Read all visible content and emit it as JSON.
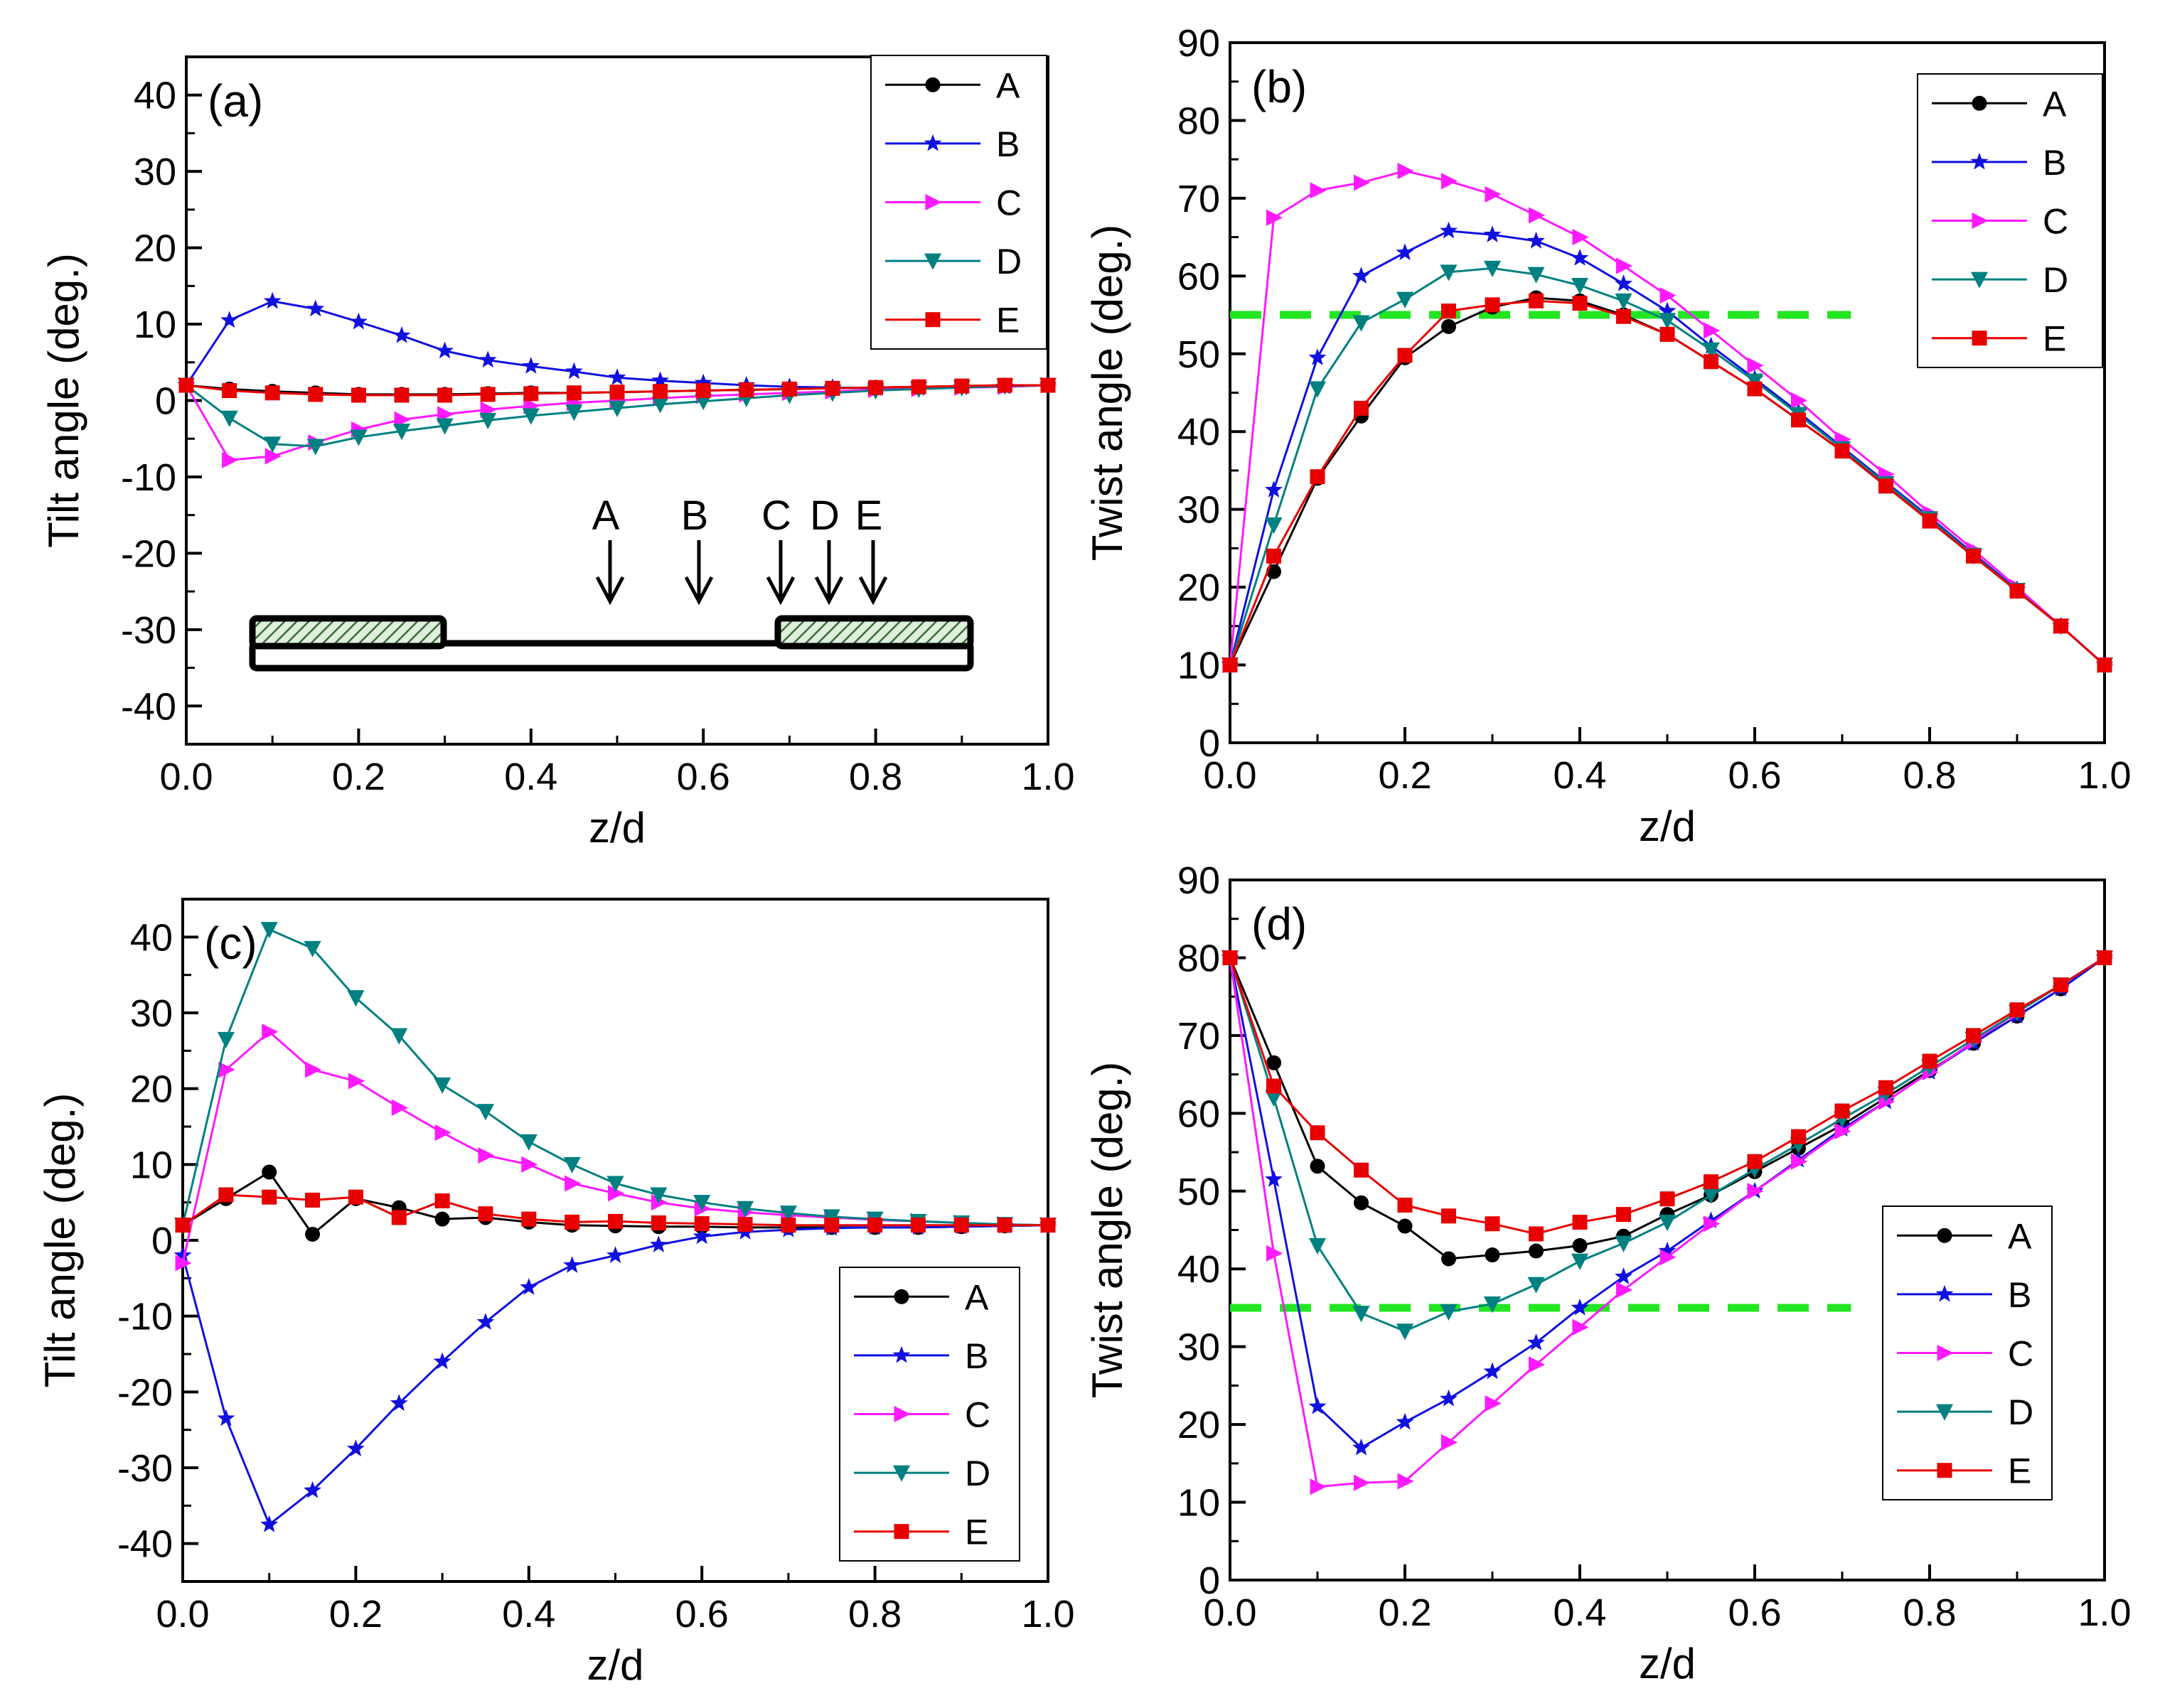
{
  "colors": {
    "A": "#000000",
    "B": "#1010e0",
    "C": "#ff1aff",
    "D": "#008080",
    "E": "#e80000",
    "reference": "#22e622"
  },
  "chart_data": [
    {
      "id": "a",
      "type": "line",
      "panel_label": "(a)",
      "xlabel": "z/d",
      "ylabel": "Tilt angle (deg.)",
      "xlim": [
        0,
        1
      ],
      "ylim": [
        -45,
        45
      ],
      "xticks": [
        0.0,
        0.2,
        0.4,
        0.6,
        0.8,
        1.0
      ],
      "xtick_labels": [
        "0.0",
        "0.2",
        "0.4",
        "0.6",
        "0.8",
        "1.0"
      ],
      "yticks": [
        -40,
        -30,
        -20,
        -10,
        0,
        10,
        20,
        30,
        40
      ],
      "ytick_labels": [
        "-40",
        "-30",
        "-20",
        "-10",
        "0",
        "10",
        "20",
        "30",
        "40"
      ],
      "legend_position": "top-right",
      "x": [
        0,
        0.05,
        0.1,
        0.15,
        0.2,
        0.25,
        0.3,
        0.35,
        0.4,
        0.45,
        0.5,
        0.55,
        0.6,
        0.65,
        0.7,
        0.75,
        0.8,
        0.85,
        0.9,
        0.95,
        1.0
      ],
      "series": [
        {
          "name": "A",
          "marker": "circle",
          "values": [
            2,
            1.5,
            1.2,
            1.0,
            0.8,
            0.8,
            0.8,
            0.9,
            1.0,
            1.0,
            1.1,
            1.2,
            1.3,
            1.4,
            1.5,
            1.6,
            1.7,
            1.8,
            1.9,
            2.0,
            2.0
          ]
        },
        {
          "name": "B",
          "marker": "star",
          "values": [
            2,
            10.5,
            13,
            12,
            10.3,
            8.5,
            6.5,
            5.3,
            4.5,
            3.8,
            3.0,
            2.6,
            2.3,
            2.0,
            1.8,
            1.7,
            1.6,
            1.6,
            1.7,
            1.8,
            2.0
          ]
        },
        {
          "name": "C",
          "marker": "triangle-right",
          "values": [
            2,
            -7.8,
            -7.3,
            -5.5,
            -3.8,
            -2.5,
            -1.8,
            -1.2,
            -0.7,
            -0.3,
            0.0,
            0.3,
            0.6,
            0.8,
            1.0,
            1.2,
            1.4,
            1.5,
            1.7,
            1.8,
            2.0
          ]
        },
        {
          "name": "D",
          "marker": "triangle-down",
          "values": [
            2,
            -2.3,
            -5.7,
            -6.0,
            -4.8,
            -4.0,
            -3.3,
            -2.6,
            -2.0,
            -1.5,
            -1.0,
            -0.5,
            -0.1,
            0.3,
            0.7,
            1.0,
            1.3,
            1.5,
            1.7,
            1.9,
            2.0
          ]
        },
        {
          "name": "E",
          "marker": "square",
          "values": [
            2,
            1.3,
            1.0,
            0.8,
            0.7,
            0.7,
            0.7,
            0.8,
            0.9,
            1.0,
            1.1,
            1.2,
            1.3,
            1.4,
            1.5,
            1.6,
            1.7,
            1.8,
            1.9,
            2.0,
            2.0
          ]
        }
      ],
      "inset": {
        "labels": [
          "A",
          "B",
          "C",
          "D",
          "E"
        ],
        "arrow_z": [
          0.5,
          0.6,
          0.69,
          0.75,
          0.8
        ],
        "electrodes_z": [
          [
            0.08,
            0.3
          ],
          [
            0.69,
            0.91
          ]
        ]
      }
    },
    {
      "id": "b",
      "type": "line",
      "panel_label": "(b)",
      "xlabel": "z/d",
      "ylabel": "Twist angle (deg.)",
      "xlim": [
        0,
        1
      ],
      "ylim": [
        0,
        90
      ],
      "xticks": [
        0.0,
        0.2,
        0.4,
        0.6,
        0.8,
        1.0
      ],
      "xtick_labels": [
        "0.0",
        "0.2",
        "0.4",
        "0.6",
        "0.8",
        "1.0"
      ],
      "yticks": [
        0,
        10,
        20,
        30,
        40,
        50,
        60,
        70,
        80,
        90
      ],
      "ytick_labels": [
        "0",
        "10",
        "20",
        "30",
        "40",
        "50",
        "60",
        "70",
        "80",
        "90"
      ],
      "legend_position": "top-right",
      "reference_line": {
        "y": 55,
        "x_range": [
          0,
          0.71
        ]
      },
      "x": [
        0,
        0.05,
        0.1,
        0.15,
        0.2,
        0.25,
        0.3,
        0.35,
        0.4,
        0.45,
        0.5,
        0.55,
        0.6,
        0.65,
        0.7,
        0.75,
        0.8,
        0.85,
        0.9,
        0.95,
        1.0
      ],
      "series": [
        {
          "name": "A",
          "marker": "circle",
          "values": [
            10,
            22,
            34,
            42,
            49.5,
            53.5,
            56,
            57.2,
            56.8,
            55,
            52.5,
            49,
            45.5,
            41.5,
            37.5,
            33,
            28.5,
            24,
            19.5,
            15,
            10
          ]
        },
        {
          "name": "B",
          "marker": "star",
          "values": [
            10,
            32.5,
            49.5,
            60,
            63,
            65.8,
            65.3,
            64.5,
            62.3,
            59,
            55.5,
            51,
            46.8,
            42.5,
            38,
            33.5,
            29,
            24.3,
            19.7,
            15,
            10
          ]
        },
        {
          "name": "C",
          "marker": "triangle-right",
          "values": [
            10,
            67.5,
            71,
            72,
            73.5,
            72.2,
            70.5,
            67.8,
            65,
            61.3,
            57.5,
            53,
            48.5,
            44,
            39,
            34.5,
            29.5,
            24.8,
            20,
            15,
            10
          ]
        },
        {
          "name": "D",
          "marker": "triangle-down",
          "values": [
            10,
            28,
            45.5,
            54,
            57,
            60.5,
            61,
            60.2,
            58.8,
            56.8,
            54.3,
            50.5,
            46.5,
            42.2,
            37.8,
            33.3,
            28.8,
            24.1,
            19.6,
            15,
            10
          ]
        },
        {
          "name": "E",
          "marker": "square",
          "values": [
            10,
            24,
            34.2,
            43,
            49.8,
            55.5,
            56.3,
            56.8,
            56.5,
            54.8,
            52.5,
            49,
            45.5,
            41.5,
            37.5,
            33,
            28.5,
            24,
            19.5,
            15,
            10
          ]
        }
      ]
    },
    {
      "id": "c",
      "type": "line",
      "panel_label": "(c)",
      "xlabel": "z/d",
      "ylabel": "Tilt angle (deg.)",
      "xlim": [
        0,
        1
      ],
      "ylim": [
        -45,
        45
      ],
      "xticks": [
        0.0,
        0.2,
        0.4,
        0.6,
        0.8,
        1.0
      ],
      "xtick_labels": [
        "0.0",
        "0.2",
        "0.4",
        "0.6",
        "0.8",
        "1.0"
      ],
      "yticks": [
        -40,
        -30,
        -20,
        -10,
        0,
        10,
        20,
        30,
        40
      ],
      "ytick_labels": [
        "-40",
        "-30",
        "-20",
        "-10",
        "0",
        "10",
        "20",
        "30",
        "40"
      ],
      "legend_position": "bottom-right",
      "x": [
        0,
        0.05,
        0.1,
        0.15,
        0.2,
        0.25,
        0.3,
        0.35,
        0.4,
        0.45,
        0.5,
        0.55,
        0.6,
        0.65,
        0.7,
        0.75,
        0.8,
        0.85,
        0.9,
        0.95,
        1.0
      ],
      "series": [
        {
          "name": "A",
          "marker": "circle",
          "values": [
            2,
            5.5,
            9,
            0.8,
            5.5,
            4.3,
            2.8,
            3.0,
            2.4,
            2.0,
            1.9,
            1.8,
            1.8,
            1.7,
            1.7,
            1.7,
            1.7,
            1.7,
            1.8,
            1.9,
            2.0
          ]
        },
        {
          "name": "B",
          "marker": "star",
          "values": [
            -2,
            -23.5,
            -37.5,
            -33,
            -27.5,
            -21.5,
            -16,
            -10.8,
            -6.2,
            -3.3,
            -2.0,
            -0.6,
            0.5,
            1.1,
            1.4,
            1.6,
            1.7,
            1.7,
            1.8,
            1.9,
            2.0
          ]
        },
        {
          "name": "C",
          "marker": "triangle-right",
          "values": [
            -3,
            22.5,
            27.5,
            22.5,
            21,
            17.5,
            14.2,
            11.2,
            10,
            7.5,
            6.2,
            5.0,
            4.2,
            3.7,
            3.3,
            3.0,
            2.7,
            2.5,
            2.3,
            2.1,
            2.0
          ]
        },
        {
          "name": "D",
          "marker": "triangle-down",
          "values": [
            2,
            26.5,
            41,
            38.5,
            32,
            27,
            20.5,
            17,
            13,
            10,
            7.5,
            6.0,
            5.0,
            4.2,
            3.6,
            3.1,
            2.8,
            2.5,
            2.3,
            2.1,
            2.0
          ]
        },
        {
          "name": "E",
          "marker": "square",
          "values": [
            2,
            6.0,
            5.7,
            5.3,
            5.7,
            3.0,
            5.2,
            3.5,
            2.8,
            2.4,
            2.5,
            2.3,
            2.2,
            2.1,
            2.0,
            2.0,
            2.0,
            2.0,
            2.0,
            2.0,
            2.0
          ]
        }
      ]
    },
    {
      "id": "d",
      "type": "line",
      "panel_label": "(d)",
      "xlabel": "z/d",
      "ylabel": "Twist angle (deg.)",
      "xlim": [
        0,
        1
      ],
      "ylim": [
        0,
        90
      ],
      "xticks": [
        0.0,
        0.2,
        0.4,
        0.6,
        0.8,
        1.0
      ],
      "xtick_labels": [
        "0.0",
        "0.2",
        "0.4",
        "0.6",
        "0.8",
        "1.0"
      ],
      "yticks": [
        0,
        10,
        20,
        30,
        40,
        50,
        60,
        70,
        80,
        90
      ],
      "ytick_labels": [
        "0",
        "10",
        "20",
        "30",
        "40",
        "50",
        "60",
        "70",
        "80",
        "90"
      ],
      "legend_position": "bottom-right",
      "reference_line": {
        "y": 35,
        "x_range": [
          0,
          0.71
        ]
      },
      "x": [
        0,
        0.05,
        0.1,
        0.15,
        0.2,
        0.25,
        0.3,
        0.35,
        0.4,
        0.45,
        0.5,
        0.55,
        0.6,
        0.65,
        0.7,
        0.75,
        0.8,
        0.85,
        0.9,
        0.95,
        1.0
      ],
      "series": [
        {
          "name": "A",
          "marker": "circle",
          "values": [
            80,
            66.5,
            53.2,
            48.5,
            45.5,
            41.3,
            41.8,
            42.3,
            43,
            44.2,
            47,
            49.5,
            52.5,
            55.5,
            58.5,
            62,
            65.5,
            69,
            72.5,
            76,
            80
          ]
        },
        {
          "name": "B",
          "marker": "star",
          "values": [
            80,
            51.5,
            22.3,
            17,
            20.3,
            23.3,
            26.8,
            30.5,
            35,
            39,
            42.3,
            46.2,
            50,
            54,
            58,
            61.5,
            65.3,
            69,
            72.5,
            76,
            80
          ]
        },
        {
          "name": "C",
          "marker": "triangle-right",
          "values": [
            80,
            42,
            12,
            12.5,
            12.7,
            17.7,
            22.7,
            27.7,
            32.5,
            37.3,
            41.5,
            45.8,
            50,
            53.8,
            57.7,
            61.5,
            65.3,
            69.2,
            73,
            76.5,
            80
          ]
        },
        {
          "name": "D",
          "marker": "triangle-down",
          "values": [
            80,
            62,
            43,
            34.3,
            32,
            34.5,
            35.5,
            38,
            41,
            43.3,
            46,
            49.5,
            52.8,
            56,
            59.3,
            62.5,
            66,
            69.5,
            73,
            76.5,
            80
          ]
        },
        {
          "name": "E",
          "marker": "square",
          "values": [
            80,
            63.5,
            57.5,
            52.7,
            48.2,
            46.8,
            45.8,
            44.5,
            46,
            47,
            49,
            51.2,
            53.8,
            57,
            60.3,
            63.3,
            66.7,
            70,
            73.3,
            76.5,
            80
          ]
        }
      ]
    }
  ]
}
